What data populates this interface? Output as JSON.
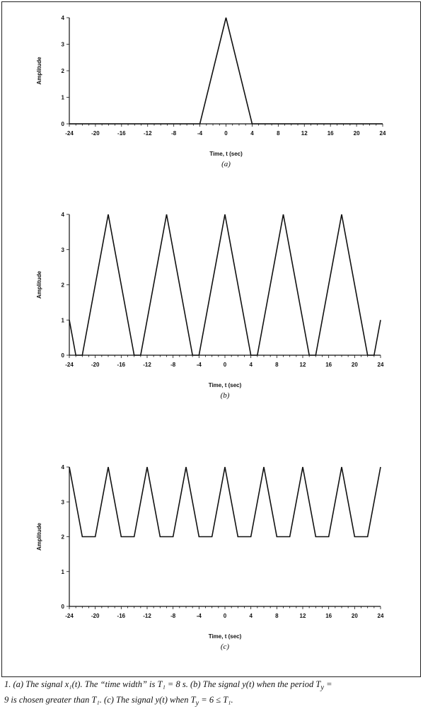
{
  "chart_data": [
    {
      "type": "line",
      "panel_label": "(a)",
      "xlabel": "Time, t (sec)",
      "ylabel": "Amplitude",
      "xlim": [
        -24,
        24
      ],
      "ylim": [
        0,
        4
      ],
      "x_ticks": [
        -24,
        -20,
        -16,
        -12,
        -8,
        -4,
        0,
        4,
        8,
        12,
        16,
        20,
        24
      ],
      "y_ticks": [
        0,
        1,
        2,
        3,
        4
      ],
      "series": [
        {
          "x": [
            -24,
            -4,
            0,
            4,
            24
          ],
          "y": [
            0,
            0,
            4,
            0,
            0
          ]
        }
      ]
    },
    {
      "type": "line",
      "panel_label": "(b)",
      "xlabel": "Time, t (sec)",
      "ylabel": "Amplitude",
      "xlim": [
        -24,
        24
      ],
      "ylim": [
        0,
        4
      ],
      "x_ticks": [
        -24,
        -20,
        -16,
        -12,
        -8,
        -4,
        0,
        4,
        8,
        12,
        16,
        20,
        24
      ],
      "y_ticks": [
        0,
        1,
        2,
        3,
        4
      ],
      "series": [
        {
          "x": [
            -24,
            -23,
            -22,
            -18,
            -14,
            -13,
            -9,
            -5,
            -4,
            0,
            4,
            5,
            9,
            13,
            14,
            18,
            22,
            23,
            24
          ],
          "y": [
            1,
            0,
            0,
            4,
            0,
            0,
            4,
            0,
            0,
            4,
            0,
            0,
            4,
            0,
            0,
            4,
            0,
            0,
            1
          ]
        }
      ]
    },
    {
      "type": "line",
      "panel_label": "(c)",
      "xlabel": "Time, t (sec)",
      "ylabel": "Amplitude",
      "xlim": [
        -24,
        24
      ],
      "ylim": [
        0,
        4
      ],
      "x_ticks": [
        -24,
        -20,
        -16,
        -12,
        -8,
        -4,
        0,
        4,
        8,
        12,
        16,
        20,
        24
      ],
      "y_ticks": [
        0,
        1,
        2,
        3,
        4
      ],
      "series": [
        {
          "x": [
            -24,
            -22,
            -20,
            -18,
            -16,
            -14,
            -12,
            -10,
            -8,
            -6,
            -4,
            -2,
            0,
            2,
            4,
            6,
            8,
            10,
            12,
            14,
            16,
            18,
            20,
            22,
            24
          ],
          "y": [
            4,
            2,
            2,
            4,
            2,
            2,
            4,
            2,
            2,
            4,
            2,
            2,
            4,
            2,
            2,
            4,
            2,
            2,
            4,
            2,
            2,
            4,
            2,
            2,
            4
          ]
        }
      ]
    }
  ],
  "caption": {
    "line1": "1. (a) The signal x₁(t). The “time width” is T₁ = 8 s. (b) The signal y(t) when the period T",
    "sub1": "y",
    "line1_end": " =",
    "line2": "9 is chosen greater than T₁. (c) The signal y(t) when T",
    "sub2": "y",
    "line2_end": " = 6 ≤ T₁."
  }
}
